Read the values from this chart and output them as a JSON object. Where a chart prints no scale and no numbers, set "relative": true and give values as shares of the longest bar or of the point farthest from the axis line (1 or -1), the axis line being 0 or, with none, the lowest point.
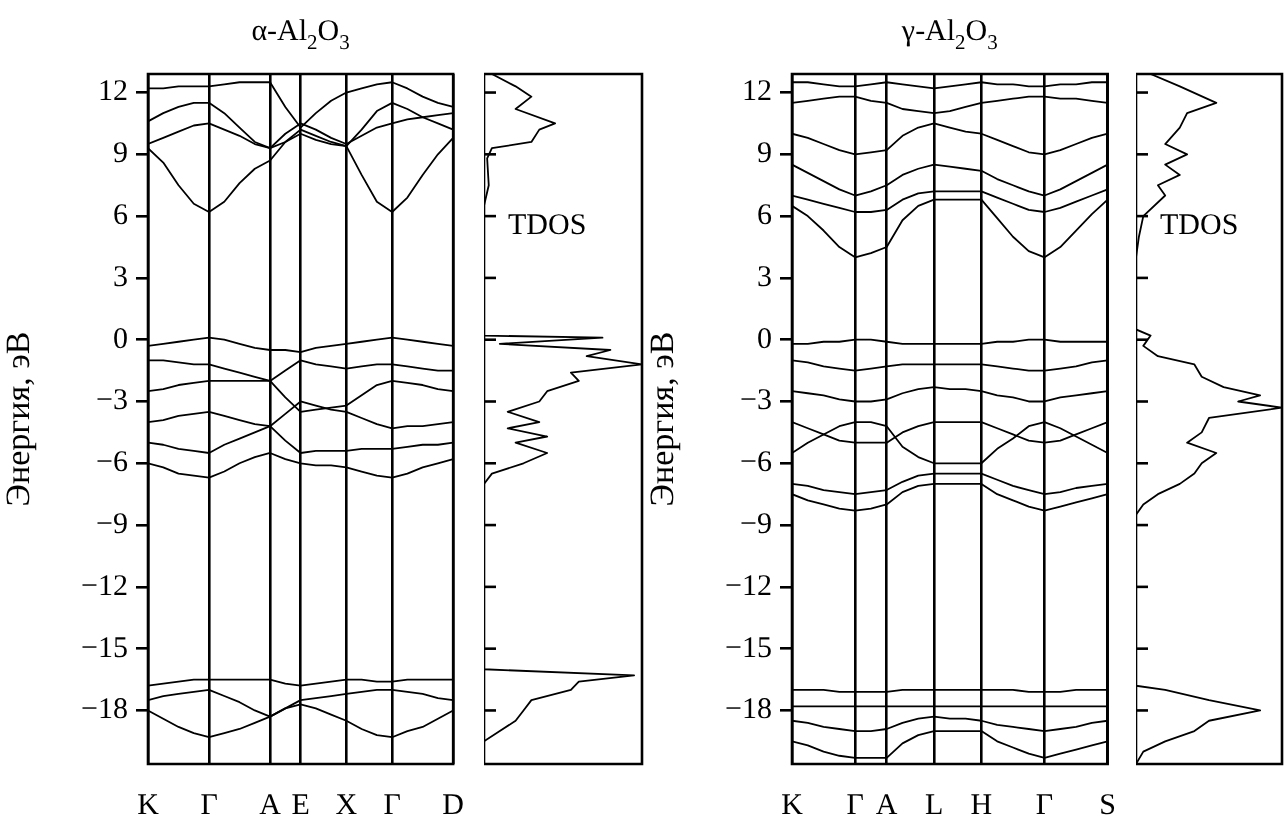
{
  "chart_data": [
    {
      "type": "line",
      "title": "α-Al$_{2}$O$_{3}$",
      "ylabel": "Энергия, эВ",
      "grid": "x",
      "legend": false,
      "marker": "none",
      "categories": [
        "K",
        null,
        null,
        null,
        "Γ",
        null,
        null,
        null,
        "A",
        null,
        "E",
        null,
        null,
        "X",
        null,
        null,
        "Γ",
        null,
        null,
        null,
        "D"
      ],
      "ylim": [
        -20.6,
        12.9
      ],
      "yticks": [
        12,
        9,
        6,
        3,
        0,
        {
          "value": -3,
          "label": "−3"
        },
        {
          "value": -6,
          "label": "−6"
        },
        {
          "value": -9,
          "label": "−9"
        },
        {
          "value": -12,
          "label": "−12"
        },
        {
          "value": -15,
          "label": "−15"
        },
        {
          "value": -18,
          "label": "−18"
        }
      ],
      "series": [
        {
          "color": "#000000",
          "values": [
            9.3,
            8.6,
            7.5,
            6.6,
            6.2,
            6.7,
            7.6,
            8.3,
            8.7,
            9.6,
            10.2,
            9.9,
            9.6,
            9.4,
            8.0,
            6.7,
            6.2,
            6.9,
            8.0,
            9.0,
            9.8
          ]
        },
        {
          "color": "#000000",
          "values": [
            10.6,
            11.0,
            11.3,
            11.5,
            11.5,
            11.0,
            10.3,
            9.6,
            9.3,
            9.6,
            10.0,
            9.7,
            9.5,
            9.4,
            10.2,
            11.1,
            11.5,
            11.2,
            10.8,
            10.5,
            10.2
          ]
        },
        {
          "color": "#000000",
          "values": [
            12.2,
            12.2,
            12.3,
            12.3,
            12.3,
            12.4,
            12.5,
            12.5,
            12.5,
            11.3,
            10.3,
            11.0,
            11.6,
            12.0,
            12.2,
            12.4,
            12.5,
            12.2,
            11.8,
            11.5,
            11.3
          ]
        },
        {
          "color": "#000000",
          "values": [
            9.5,
            9.8,
            10.1,
            10.4,
            10.5,
            10.2,
            9.9,
            9.5,
            9.3,
            10.0,
            10.5,
            10.2,
            9.8,
            9.5,
            9.9,
            10.3,
            10.5,
            10.7,
            10.8,
            10.9,
            11.0
          ]
        },
        {
          "color": "#000000",
          "values": [
            -0.3,
            -0.2,
            -0.1,
            0,
            0.1,
            0,
            -0.2,
            -0.4,
            -0.5,
            -0.5,
            -0.6,
            -0.4,
            -0.3,
            -0.2,
            -0.1,
            0,
            0.1,
            0,
            -0.1,
            -0.2,
            -0.3
          ]
        },
        {
          "color": "#000000",
          "values": [
            -1,
            -1,
            -1.1,
            -1.2,
            -1.2,
            -1.4,
            -1.6,
            -1.8,
            -2,
            -1.5,
            -1,
            -1.2,
            -1.3,
            -1.4,
            -1.3,
            -1.2,
            -1.2,
            -1.3,
            -1.4,
            -1.5,
            -1.5
          ]
        },
        {
          "color": "#000000",
          "values": [
            -2.5,
            -2.4,
            -2.2,
            -2.1,
            -2,
            -2,
            -2,
            -2,
            -2,
            -2.8,
            -3.5,
            -3.4,
            -3.3,
            -3.2,
            -2.7,
            -2.2,
            -2,
            -2.1,
            -2.2,
            -2.4,
            -2.5
          ]
        },
        {
          "color": "#000000",
          "values": [
            -4,
            -3.9,
            -3.7,
            -3.6,
            -3.5,
            -3.7,
            -3.9,
            -4.1,
            -4.2,
            -3.6,
            -3,
            -3.2,
            -3.4,
            -3.5,
            -3.8,
            -4.1,
            -4.3,
            -4.2,
            -4.2,
            -4.1,
            -4
          ]
        },
        {
          "color": "#000000",
          "values": [
            -5,
            -5.1,
            -5.3,
            -5.4,
            -5.5,
            -5.1,
            -4.8,
            -4.5,
            -4.2,
            -4.9,
            -5.5,
            -5.4,
            -5.4,
            -5.4,
            -5.3,
            -5.3,
            -5.3,
            -5.2,
            -5.1,
            -5.1,
            -5
          ]
        },
        {
          "color": "#000000",
          "values": [
            -6,
            -6.2,
            -6.5,
            -6.6,
            -6.7,
            -6.4,
            -6,
            -5.7,
            -5.5,
            -5.8,
            -6,
            -6.1,
            -6.1,
            -6.2,
            -6.4,
            -6.6,
            -6.7,
            -6.5,
            -6.2,
            -6,
            -5.8
          ]
        },
        {
          "color": "#000000",
          "values": [
            -16.8,
            -16.7,
            -16.6,
            -16.5,
            -16.5,
            -16.5,
            -16.5,
            -16.5,
            -16.5,
            -16.7,
            -16.8,
            -16.7,
            -16.6,
            -16.5,
            -16.5,
            -16.6,
            -16.6,
            -16.5,
            -16.5,
            -16.5,
            -16.5
          ]
        },
        {
          "color": "#000000",
          "values": [
            -17.5,
            -17.3,
            -17.2,
            -17.1,
            -17,
            -17.3,
            -17.6,
            -18,
            -18.3,
            -17.9,
            -17.5,
            -17.4,
            -17.3,
            -17.2,
            -17.1,
            -17,
            -17,
            -17.1,
            -17.2,
            -17.4,
            -17.5
          ]
        },
        {
          "color": "#000000",
          "values": [
            -18,
            -18.4,
            -18.8,
            -19.1,
            -19.3,
            -19.1,
            -18.9,
            -18.6,
            -18.3,
            -17.9,
            -17.7,
            -17.9,
            -18.2,
            -18.5,
            -18.9,
            -19.2,
            -19.3,
            -19,
            -18.8,
            -18.4,
            -18
          ]
        }
      ]
    },
    {
      "type": "line",
      "orientation": "horizontal",
      "relative": true,
      "grid": false,
      "legend": false,
      "marker": "none",
      "tick_labels": false,
      "annotations": [
        "TDOS"
      ],
      "ylim": [
        -20.6,
        12.9
      ],
      "yticks": [
        12,
        9,
        6,
        3,
        0,
        -3,
        -6,
        -9,
        -12,
        -15,
        -18
      ],
      "x": [
        12.9,
        12.3,
        11.8,
        11.2,
        10.5,
        10.2,
        9.6,
        9.3,
        8.8,
        7.5,
        6.5,
        0.2,
        0.1,
        -0.2,
        -0.5,
        -0.8,
        -1.2,
        -1.6,
        -2,
        -2.5,
        -3,
        -3.5,
        -4,
        -4.3,
        -4.7,
        -5,
        -5.5,
        -6,
        -6.5,
        -7,
        -16,
        -16.3,
        -16.6,
        -17,
        -17.5,
        -18,
        -18.5,
        -19,
        -19.5,
        -20.6
      ],
      "color": "#000000",
      "values": [
        0.05,
        0.2,
        0.3,
        0.2,
        0.45,
        0.35,
        0.3,
        0.05,
        0.02,
        0.03,
        0,
        0,
        0.75,
        0.1,
        0.8,
        0.65,
        1,
        0.55,
        0.6,
        0.4,
        0.35,
        0.15,
        0.35,
        0.15,
        0.4,
        0.2,
        0.4,
        0.25,
        0.05,
        0,
        0,
        0.95,
        0.6,
        0.55,
        0.3,
        0.25,
        0.2,
        0.1,
        0,
        0
      ]
    },
    {
      "type": "line",
      "title": "γ-Al$_{2}$O$_{3}$",
      "ylabel": "Энергия, эВ",
      "grid": "x",
      "legend": false,
      "marker": "none",
      "categories": [
        "K",
        null,
        null,
        null,
        "Γ",
        null,
        "A",
        null,
        null,
        "L",
        null,
        null,
        "H",
        null,
        null,
        null,
        "Γ",
        null,
        null,
        null,
        "S"
      ],
      "ylim": [
        -20.6,
        12.9
      ],
      "yticks": [
        12,
        9,
        6,
        3,
        0,
        {
          "value": -3,
          "label": "−3"
        },
        {
          "value": -6,
          "label": "−6"
        },
        {
          "value": -9,
          "label": "−9"
        },
        {
          "value": -12,
          "label": "−12"
        },
        {
          "value": -15,
          "label": "−15"
        },
        {
          "value": -18,
          "label": "−18"
        }
      ],
      "series": [
        {
          "color": "#000000",
          "values": [
            6.5,
            6.0,
            5.3,
            4.5,
            4.0,
            4.2,
            4.5,
            5.8,
            6.5,
            6.8,
            6.8,
            6.8,
            6.8,
            5.9,
            5.0,
            4.3,
            4.0,
            4.5,
            5.3,
            6.1,
            6.8
          ]
        },
        {
          "color": "#000000",
          "values": [
            7,
            6.8,
            6.6,
            6.4,
            6.2,
            6.2,
            6.3,
            6.8,
            7.1,
            7.2,
            7.2,
            7.2,
            7.2,
            6.9,
            6.6,
            6.3,
            6.2,
            6.4,
            6.7,
            7.0,
            7.3
          ]
        },
        {
          "color": "#000000",
          "values": [
            8.5,
            8.1,
            7.7,
            7.3,
            7,
            7.2,
            7.5,
            8,
            8.3,
            8.5,
            8.4,
            8.3,
            8.2,
            7.8,
            7.5,
            7.2,
            7,
            7.3,
            7.7,
            8.1,
            8.5
          ]
        },
        {
          "color": "#000000",
          "values": [
            10,
            9.8,
            9.5,
            9.2,
            9,
            9.1,
            9.2,
            9.9,
            10.3,
            10.5,
            10.3,
            10.1,
            10,
            9.7,
            9.4,
            9.1,
            9,
            9.2,
            9.5,
            9.8,
            10
          ]
        },
        {
          "color": "#000000",
          "values": [
            11.5,
            11.6,
            11.7,
            11.8,
            11.8,
            11.6,
            11.5,
            11.2,
            11.1,
            11,
            11.1,
            11.3,
            11.5,
            11.6,
            11.7,
            11.8,
            11.8,
            11.7,
            11.7,
            11.6,
            11.5
          ]
        },
        {
          "color": "#000000",
          "values": [
            12.5,
            12.5,
            12.4,
            12.3,
            12.3,
            12.4,
            12.5,
            12.4,
            12.3,
            12.2,
            12.3,
            12.4,
            12.5,
            12.4,
            12.4,
            12.3,
            12.3,
            12.4,
            12.4,
            12.5,
            12.5
          ]
        },
        {
          "color": "#000000",
          "values": [
            -0.2,
            -0.2,
            -0.1,
            -0.1,
            0,
            0,
            -0.1,
            -0.2,
            -0.2,
            -0.2,
            -0.2,
            -0.2,
            -0.2,
            -0.1,
            -0.1,
            0,
            0,
            -0.1,
            -0.1,
            -0.1,
            -0.1
          ]
        },
        {
          "color": "#000000",
          "values": [
            -1,
            -1.1,
            -1.3,
            -1.4,
            -1.5,
            -1.4,
            -1.3,
            -1.2,
            -1.2,
            -1.2,
            -1.2,
            -1.2,
            -1.2,
            -1.3,
            -1.4,
            -1.5,
            -1.5,
            -1.4,
            -1.3,
            -1.1,
            -1
          ]
        },
        {
          "color": "#000000",
          "values": [
            -2.5,
            -2.6,
            -2.7,
            -2.9,
            -3,
            -3,
            -2.9,
            -2.6,
            -2.4,
            -2.3,
            -2.4,
            -2.4,
            -2.5,
            -2.7,
            -2.8,
            -3,
            -3,
            -2.8,
            -2.7,
            -2.6,
            -2.5
          ]
        },
        {
          "color": "#000000",
          "values": [
            -4,
            -4.3,
            -4.6,
            -4.9,
            -5,
            -5,
            -5,
            -4.5,
            -4.2,
            -4,
            -4,
            -4,
            -4,
            -4.3,
            -4.6,
            -4.9,
            -5,
            -4.9,
            -4.6,
            -4.3,
            -4
          ]
        },
        {
          "color": "#000000",
          "values": [
            -5.5,
            -5,
            -4.6,
            -4.2,
            -4,
            -4,
            -4.2,
            -5.2,
            -5.7,
            -6,
            -6,
            -6,
            -6,
            -5.3,
            -4.8,
            -4.2,
            -4,
            -4.3,
            -4.7,
            -5.1,
            -5.5
          ]
        },
        {
          "color": "#000000",
          "values": [
            -7,
            -7.1,
            -7.3,
            -7.4,
            -7.5,
            -7.4,
            -7.3,
            -6.9,
            -6.6,
            -6.5,
            -6.5,
            -6.5,
            -6.5,
            -6.8,
            -7.1,
            -7.3,
            -7.5,
            -7.4,
            -7.2,
            -7.1,
            -7
          ]
        },
        {
          "color": "#000000",
          "values": [
            -7.5,
            -7.8,
            -8,
            -8.2,
            -8.3,
            -8.2,
            -8,
            -7.4,
            -7.1,
            -7,
            -7,
            -7,
            -7,
            -7.5,
            -7.8,
            -8.1,
            -8.3,
            -8.1,
            -7.9,
            -7.7,
            -7.5
          ]
        },
        {
          "color": "#000000",
          "values": [
            -17,
            -17,
            -17,
            -17.1,
            -17.1,
            -17.1,
            -17.1,
            -17,
            -17,
            -17,
            -17,
            -17,
            -17,
            -17,
            -17,
            -17.1,
            -17.1,
            -17.1,
            -17,
            -17,
            -17
          ]
        },
        {
          "color": "#000000",
          "values": [
            -17.8,
            -17.8,
            -17.8,
            -17.8,
            -17.8,
            -17.8,
            -17.8,
            -17.8,
            -17.8,
            -17.8,
            -17.8,
            -17.8,
            -17.8,
            -17.8,
            -17.8,
            -17.8,
            -17.8,
            -17.8,
            -17.8,
            -17.8,
            -17.8
          ]
        },
        {
          "color": "#000000",
          "values": [
            -18.5,
            -18.6,
            -18.8,
            -18.9,
            -19,
            -19,
            -18.9,
            -18.6,
            -18.4,
            -18.3,
            -18.4,
            -18.4,
            -18.5,
            -18.7,
            -18.8,
            -18.9,
            -19,
            -18.9,
            -18.8,
            -18.6,
            -18.5
          ]
        },
        {
          "color": "#000000",
          "values": [
            -19.5,
            -19.7,
            -20,
            -20.2,
            -20.3,
            -20.3,
            -20.3,
            -19.6,
            -19.2,
            -19,
            -19,
            -19,
            -19,
            -19.5,
            -19.8,
            -20.1,
            -20.3,
            -20.1,
            -19.9,
            -19.7,
            -19.5
          ]
        }
      ]
    },
    {
      "type": "line",
      "orientation": "horizontal",
      "relative": true,
      "grid": false,
      "legend": false,
      "marker": "none",
      "tick_labels": false,
      "annotations": [
        "TDOS"
      ],
      "ylim": [
        -20.6,
        12.9
      ],
      "yticks": [
        12,
        9,
        6,
        3,
        0,
        -3,
        -6,
        -9,
        -12,
        -15,
        -18
      ],
      "x": [
        12.9,
        12.3,
        11.5,
        11,
        10.3,
        9.5,
        9,
        8.5,
        8,
        7.5,
        7,
        6,
        5,
        4,
        0.5,
        0.2,
        -0.3,
        -0.8,
        -1.2,
        -1.8,
        -2.3,
        -2.7,
        -3,
        -3.3,
        -3.8,
        -4.5,
        -5,
        -5.5,
        -6,
        -6.5,
        -7,
        -7.5,
        -8,
        -8.5,
        -16.8,
        -17,
        -17.5,
        -18,
        -18.5,
        -19,
        -19.5,
        -20,
        -20.6
      ],
      "color": "#000000",
      "values": [
        0.1,
        0.3,
        0.55,
        0.35,
        0.3,
        0.2,
        0.35,
        0.2,
        0.3,
        0.15,
        0.2,
        0.05,
        0.02,
        0,
        0,
        0.1,
        0.05,
        0.15,
        0.4,
        0.45,
        0.6,
        0.85,
        0.7,
        1,
        0.5,
        0.45,
        0.35,
        0.55,
        0.45,
        0.4,
        0.3,
        0.15,
        0.05,
        0,
        0,
        0.2,
        0.5,
        0.85,
        0.5,
        0.4,
        0.2,
        0.05,
        0
      ]
    }
  ]
}
